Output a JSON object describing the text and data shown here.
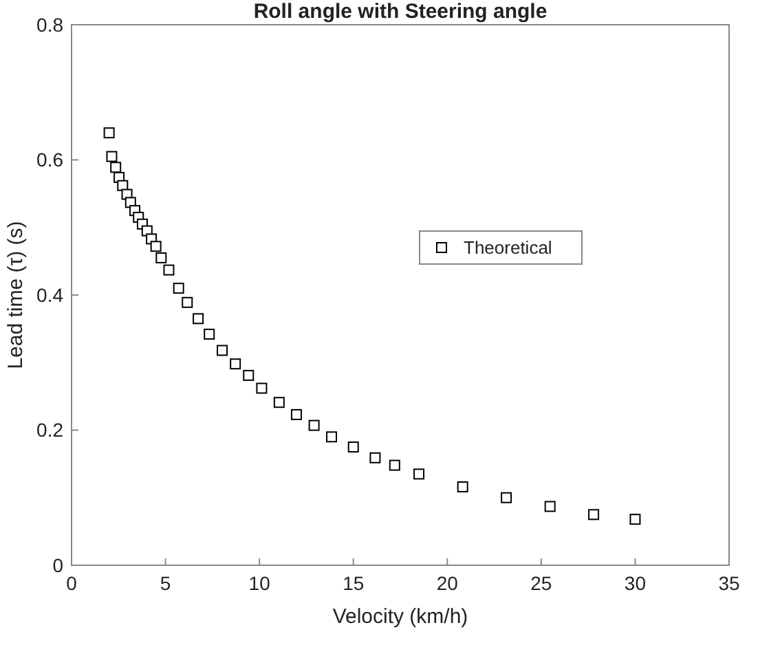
{
  "chart_data": {
    "type": "scatter",
    "title": "Roll angle with Steering angle",
    "xlabel": "Velocity (km/h)",
    "ylabel": "Lead time (τ) (s)",
    "xlim": [
      0,
      35
    ],
    "xticks": [
      0,
      5,
      10,
      15,
      20,
      25,
      30,
      35
    ],
    "ylim": [
      0,
      0.8
    ],
    "yticks": [
      0,
      0.2,
      0.4,
      0.6,
      0.8
    ],
    "marker": "square",
    "legend": "right",
    "grid": false,
    "series": [
      {
        "name": "Theoretical",
        "color": "#000000",
        "x": [
          2,
          2.14,
          2.35,
          2.53,
          2.72,
          2.95,
          3.14,
          3.37,
          3.56,
          3.77,
          4.02,
          4.25,
          4.49,
          4.77,
          5.18,
          5.7,
          6.16,
          6.74,
          7.33,
          8.02,
          8.72,
          9.42,
          10.12,
          11.05,
          11.97,
          12.91,
          13.84,
          15,
          16.16,
          17.2,
          18.49,
          20.82,
          23.14,
          25.47,
          27.79,
          30
        ],
        "values": [
          0.64,
          0.605,
          0.589,
          0.574,
          0.562,
          0.549,
          0.537,
          0.525,
          0.515,
          0.505,
          0.495,
          0.483,
          0.472,
          0.455,
          0.437,
          0.41,
          0.389,
          0.365,
          0.342,
          0.318,
          0.298,
          0.281,
          0.262,
          0.241,
          0.223,
          0.207,
          0.19,
          0.175,
          0.159,
          0.148,
          0.135,
          0.116,
          0.1,
          0.087,
          0.075,
          0.068
        ]
      }
    ]
  }
}
